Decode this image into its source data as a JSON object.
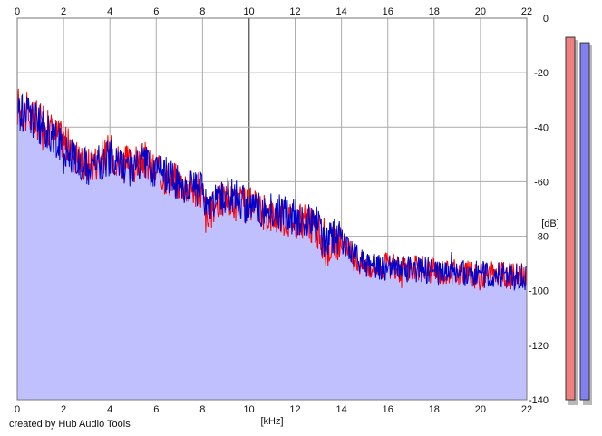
{
  "credit": "created by Hub Audio Tools",
  "chart_data": {
    "type": "line",
    "xlabel": "[kHz]",
    "ylabel": "[dB]",
    "xlim": [
      0,
      22
    ],
    "ylim": [
      -140,
      0
    ],
    "x_ticks": [
      0,
      2,
      4,
      6,
      8,
      10,
      12,
      14,
      16,
      18,
      20,
      22
    ],
    "y_ticks": [
      0,
      -20,
      -40,
      -60,
      -80,
      -100,
      -120,
      -140
    ],
    "grid": true,
    "colors": {
      "fill": "#c0c0ff",
      "red_series": "#ff0000",
      "blue_series": "#0000cc",
      "grid": "#aaaaaa",
      "meter_left": "#f08080",
      "meter_right": "#8080f0"
    },
    "series": [
      {
        "color": "red",
        "x": [
          0,
          0.5,
          1,
          1.5,
          2,
          2.5,
          3,
          3.5,
          4,
          4.5,
          5,
          5.5,
          6,
          6.5,
          7,
          7.5,
          8,
          8.2,
          8.5,
          9,
          9.5,
          10,
          10.5,
          11,
          11.5,
          12,
          12.5,
          13,
          13.3,
          13.6,
          14,
          14.5,
          15,
          15.5,
          16,
          16.5,
          17,
          17.5,
          18,
          18.5,
          19,
          19.5,
          20,
          20.5,
          21,
          21.5,
          22
        ],
        "y": [
          -32,
          -36,
          -38,
          -41,
          -45,
          -50,
          -54,
          -52,
          -49,
          -53,
          -54,
          -52,
          -57,
          -58,
          -60,
          -62,
          -64,
          -76,
          -68,
          -66,
          -68,
          -69,
          -71,
          -72,
          -73,
          -74,
          -75,
          -78,
          -86,
          -82,
          -82,
          -88,
          -91,
          -91,
          -91,
          -92,
          -92,
          -92,
          -93,
          -93,
          -93,
          -94,
          -95,
          -94,
          -94,
          -95,
          -94
        ]
      },
      {
        "color": "blue",
        "x": [
          0,
          0.5,
          1,
          1.5,
          2,
          2.5,
          3,
          3.5,
          4,
          4.5,
          5,
          5.5,
          6,
          6.5,
          7,
          7.5,
          8,
          8.2,
          8.5,
          9,
          9.5,
          10,
          10.5,
          11,
          11.5,
          12,
          12.5,
          13,
          13.3,
          13.6,
          14,
          14.5,
          15,
          15.5,
          16,
          16.5,
          17,
          17.5,
          18,
          18.5,
          19,
          19.5,
          20,
          20.5,
          21,
          21.5,
          22
        ],
        "y": [
          -34,
          -35,
          -40,
          -43,
          -47,
          -51,
          -55,
          -53,
          -51,
          -54,
          -55,
          -53,
          -56,
          -58,
          -60,
          -62,
          -63,
          -70,
          -67,
          -65,
          -66,
          -69,
          -70,
          -71,
          -72,
          -73,
          -74,
          -76,
          -84,
          -80,
          -81,
          -87,
          -90,
          -91,
          -92,
          -92,
          -92,
          -92,
          -93,
          -93,
          -93,
          -94,
          -94,
          -94,
          -94,
          -95,
          -95
        ]
      }
    ],
    "meters": [
      {
        "color": "red",
        "level_db": -7
      },
      {
        "color": "blue",
        "level_db": -9
      }
    ]
  }
}
